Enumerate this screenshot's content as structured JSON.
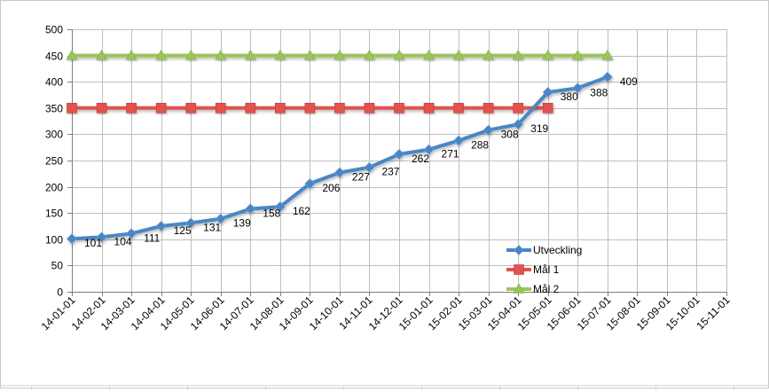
{
  "chart_data": {
    "type": "line",
    "title": "",
    "xlabel": "",
    "ylabel": "",
    "ylim": [
      0,
      500
    ],
    "yticks": [
      "0",
      "50",
      "100",
      "150",
      "200",
      "250",
      "300",
      "350",
      "400",
      "450",
      "500"
    ],
    "grid": true,
    "legend_position": "right",
    "categories": [
      "14-01-01",
      "14-02-01",
      "14-03-01",
      "14-04-01",
      "14-05-01",
      "14-06-01",
      "14-07-01",
      "14-08-01",
      "14-09-01",
      "14-10-01",
      "14-11-01",
      "14-12-01",
      "15-01-01",
      "15-02-01",
      "15-03-01",
      "15-04-01",
      "15-05-01",
      "15-06-01",
      "15-07-01",
      "15-08-01",
      "15-09-01",
      "15-10-01",
      "15-11-01"
    ],
    "series": [
      {
        "name": "Utveckling",
        "color": "#4a86c5",
        "marker": "diamond",
        "values": [
          101,
          104,
          111,
          125,
          131,
          139,
          158,
          162,
          206,
          227,
          237,
          262,
          271,
          288,
          308,
          319,
          380,
          388,
          409,
          null,
          null,
          null,
          null
        ],
        "data_labels": [
          "101",
          "104",
          "111",
          "125",
          "131",
          "139",
          "158",
          "162",
          "206",
          "227",
          "237",
          "262",
          "271",
          "288",
          "308",
          "319",
          "380",
          "388",
          "409"
        ]
      },
      {
        "name": "Mål 1",
        "color": "#e0524f",
        "marker": "square",
        "values": [
          350,
          350,
          350,
          350,
          350,
          350,
          350,
          350,
          350,
          350,
          350,
          350,
          350,
          350,
          350,
          350,
          350,
          null,
          null,
          null,
          null,
          null,
          null
        ]
      },
      {
        "name": "Mål 2",
        "color": "#9bc55a",
        "marker": "triangle",
        "values": [
          450,
          450,
          450,
          450,
          450,
          450,
          450,
          450,
          450,
          450,
          450,
          450,
          450,
          450,
          450,
          450,
          450,
          450,
          450,
          null,
          null,
          null,
          null
        ]
      }
    ]
  }
}
